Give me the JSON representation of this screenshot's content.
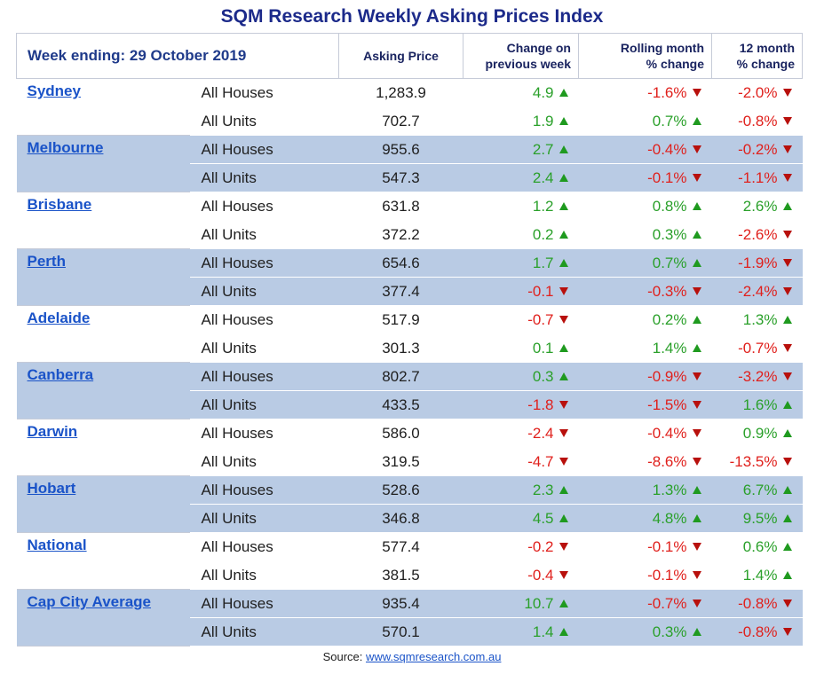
{
  "title": "SQM Research Weekly Asking Prices Index",
  "header": {
    "week_ending": "Week ending:  29 October 2019",
    "asking_price": "Asking Price",
    "change_line1": "Change on",
    "change_line2": "previous week",
    "rolling_line1": "Rolling month",
    "rolling_line2": "% change",
    "yr_line1": "12 month",
    "yr_line2": "% change"
  },
  "cities": [
    {
      "name": "Sydney",
      "rows": [
        {
          "type": "All Houses",
          "price": "1,283.9",
          "wk": "4.9",
          "wk_dir": "up",
          "mo": "-1.6%",
          "mo_dir": "dn",
          "yr": "-2.0%",
          "yr_dir": "dn"
        },
        {
          "type": "All Units",
          "price": "702.7",
          "wk": "1.9",
          "wk_dir": "up",
          "mo": "0.7%",
          "mo_dir": "up",
          "yr": "-0.8%",
          "yr_dir": "dn"
        }
      ]
    },
    {
      "name": "Melbourne",
      "rows": [
        {
          "type": "All Houses",
          "price": "955.6",
          "wk": "2.7",
          "wk_dir": "up",
          "mo": "-0.4%",
          "mo_dir": "dn",
          "yr": "-0.2%",
          "yr_dir": "dn"
        },
        {
          "type": "All Units",
          "price": "547.3",
          "wk": "2.4",
          "wk_dir": "up",
          "mo": "-0.1%",
          "mo_dir": "dn",
          "yr": "-1.1%",
          "yr_dir": "dn"
        }
      ]
    },
    {
      "name": "Brisbane",
      "rows": [
        {
          "type": "All Houses",
          "price": "631.8",
          "wk": "1.2",
          "wk_dir": "up",
          "mo": "0.8%",
          "mo_dir": "up",
          "yr": "2.6%",
          "yr_dir": "up"
        },
        {
          "type": "All Units",
          "price": "372.2",
          "wk": "0.2",
          "wk_dir": "up",
          "mo": "0.3%",
          "mo_dir": "up",
          "yr": "-2.6%",
          "yr_dir": "dn"
        }
      ]
    },
    {
      "name": "Perth",
      "rows": [
        {
          "type": "All Houses",
          "price": "654.6",
          "wk": "1.7",
          "wk_dir": "up",
          "mo": "0.7%",
          "mo_dir": "up",
          "yr": "-1.9%",
          "yr_dir": "dn"
        },
        {
          "type": "All Units",
          "price": "377.4",
          "wk": "-0.1",
          "wk_dir": "dn",
          "mo": "-0.3%",
          "mo_dir": "dn",
          "yr": "-2.4%",
          "yr_dir": "dn"
        }
      ]
    },
    {
      "name": "Adelaide",
      "rows": [
        {
          "type": "All Houses",
          "price": "517.9",
          "wk": "-0.7",
          "wk_dir": "dn",
          "mo": "0.2%",
          "mo_dir": "up",
          "yr": "1.3%",
          "yr_dir": "up"
        },
        {
          "type": "All Units",
          "price": "301.3",
          "wk": "0.1",
          "wk_dir": "up",
          "mo": "1.4%",
          "mo_dir": "up",
          "yr": "-0.7%",
          "yr_dir": "dn"
        }
      ]
    },
    {
      "name": "Canberra",
      "rows": [
        {
          "type": "All Houses",
          "price": "802.7",
          "wk": "0.3",
          "wk_dir": "up",
          "mo": "-0.9%",
          "mo_dir": "dn",
          "yr": "-3.2%",
          "yr_dir": "dn"
        },
        {
          "type": "All Units",
          "price": "433.5",
          "wk": "-1.8",
          "wk_dir": "dn",
          "mo": "-1.5%",
          "mo_dir": "dn",
          "yr": "1.6%",
          "yr_dir": "up"
        }
      ]
    },
    {
      "name": "Darwin",
      "rows": [
        {
          "type": "All Houses",
          "price": "586.0",
          "wk": "-2.4",
          "wk_dir": "dn",
          "mo": "-0.4%",
          "mo_dir": "dn",
          "yr": "0.9%",
          "yr_dir": "up"
        },
        {
          "type": "All Units",
          "price": "319.5",
          "wk": "-4.7",
          "wk_dir": "dn",
          "mo": "-8.6%",
          "mo_dir": "dn",
          "yr": "-13.5%",
          "yr_dir": "dn"
        }
      ]
    },
    {
      "name": "Hobart",
      "rows": [
        {
          "type": "All Houses",
          "price": "528.6",
          "wk": "2.3",
          "wk_dir": "up",
          "mo": "1.3%",
          "mo_dir": "up",
          "yr": "6.7%",
          "yr_dir": "up"
        },
        {
          "type": "All Units",
          "price": "346.8",
          "wk": "4.5",
          "wk_dir": "up",
          "mo": "4.8%",
          "mo_dir": "up",
          "yr": "9.5%",
          "yr_dir": "up"
        }
      ]
    },
    {
      "name": "National",
      "rows": [
        {
          "type": "All Houses",
          "price": "577.4",
          "wk": "-0.2",
          "wk_dir": "dn",
          "mo": "-0.1%",
          "mo_dir": "dn",
          "yr": "0.6%",
          "yr_dir": "up"
        },
        {
          "type": "All Units",
          "price": "381.5",
          "wk": "-0.4",
          "wk_dir": "dn",
          "mo": "-0.1%",
          "mo_dir": "dn",
          "yr": "1.4%",
          "yr_dir": "up"
        }
      ]
    },
    {
      "name": "Cap City Average",
      "rows": [
        {
          "type": "All Houses",
          "price": "935.4",
          "wk": "10.7",
          "wk_dir": "up",
          "mo": "-0.7%",
          "mo_dir": "dn",
          "yr": "-0.8%",
          "yr_dir": "dn"
        },
        {
          "type": "All Units",
          "price": "570.1",
          "wk": "1.4",
          "wk_dir": "up",
          "mo": "0.3%",
          "mo_dir": "up",
          "yr": "-0.8%",
          "yr_dir": "dn"
        }
      ]
    }
  ],
  "source": {
    "label": "Source: ",
    "link": "www.sqmresearch.com.au"
  },
  "colors": {
    "title": "#1c2a8a",
    "shade": "#b9cbe4",
    "up": "#2aa02a",
    "down": "#e0201c",
    "link": "#1a53c8"
  }
}
